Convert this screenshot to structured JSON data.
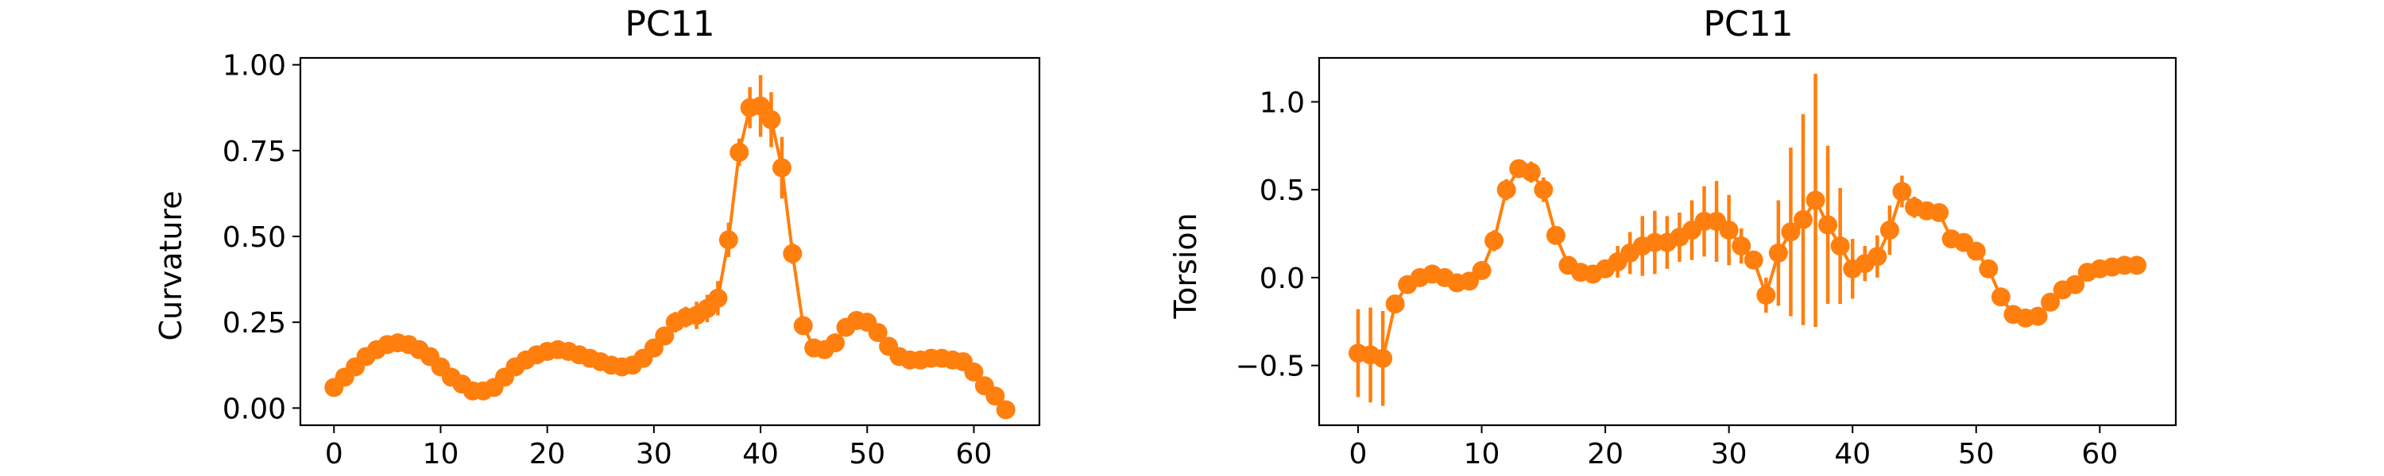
{
  "chart_data": [
    {
      "type": "line",
      "title": "PC11",
      "xlabel": "",
      "ylabel": "Curvature",
      "xlim": [
        -3.15,
        66.15
      ],
      "ylim": [
        -0.05,
        1.02
      ],
      "xticks": [
        0,
        10,
        20,
        30,
        40,
        50,
        60
      ],
      "yticks": [
        0.0,
        0.25,
        0.5,
        0.75,
        1.0
      ],
      "ytick_labels": [
        "0.00",
        "0.25",
        "0.50",
        "0.75",
        "1.00"
      ],
      "color": "#ff7f0e",
      "x": [
        0,
        1,
        2,
        3,
        4,
        5,
        6,
        7,
        8,
        9,
        10,
        11,
        12,
        13,
        14,
        15,
        16,
        17,
        18,
        19,
        20,
        21,
        22,
        23,
        24,
        25,
        26,
        27,
        28,
        29,
        30,
        31,
        32,
        33,
        34,
        35,
        36,
        37,
        38,
        39,
        40,
        41,
        42,
        43,
        44,
        45,
        46,
        47,
        48,
        49,
        50,
        51,
        52,
        53,
        54,
        55,
        56,
        57,
        58,
        59,
        60,
        61,
        62,
        63
      ],
      "y": [
        0.06,
        0.09,
        0.12,
        0.15,
        0.17,
        0.185,
        0.19,
        0.185,
        0.17,
        0.15,
        0.12,
        0.09,
        0.07,
        0.05,
        0.05,
        0.06,
        0.09,
        0.12,
        0.14,
        0.155,
        0.165,
        0.17,
        0.165,
        0.155,
        0.145,
        0.135,
        0.125,
        0.12,
        0.125,
        0.145,
        0.175,
        0.21,
        0.25,
        0.265,
        0.27,
        0.29,
        0.32,
        0.49,
        0.745,
        0.875,
        0.88,
        0.84,
        0.7,
        0.45,
        0.24,
        0.175,
        0.17,
        0.19,
        0.235,
        0.255,
        0.25,
        0.22,
        0.18,
        0.15,
        0.14,
        0.14,
        0.145,
        0.145,
        0.14,
        0.135,
        0.105,
        0.065,
        0.035,
        -0.005
      ],
      "yerr": [
        0.01,
        0.01,
        0.01,
        0.01,
        0.01,
        0.01,
        0.01,
        0.01,
        0.01,
        0.01,
        0.01,
        0.01,
        0.01,
        0.01,
        0.01,
        0.01,
        0.01,
        0.01,
        0.01,
        0.01,
        0.01,
        0.01,
        0.01,
        0.01,
        0.01,
        0.01,
        0.01,
        0.01,
        0.01,
        0.01,
        0.02,
        0.02,
        0.03,
        0.03,
        0.04,
        0.04,
        0.05,
        0.05,
        0.04,
        0.06,
        0.09,
        0.08,
        0.09,
        0.03,
        0.02,
        0.02,
        0.02,
        0.02,
        0.02,
        0.02,
        0.02,
        0.02,
        0.02,
        0.02,
        0.02,
        0.02,
        0.02,
        0.02,
        0.02,
        0.02,
        0.02,
        0.02,
        0.02,
        0.02
      ]
    },
    {
      "type": "line",
      "title": "PC11",
      "xlabel": "",
      "ylabel": "Torsion",
      "xlim": [
        -3.15,
        66.15
      ],
      "ylim": [
        -0.84,
        1.25
      ],
      "xticks": [
        0,
        10,
        20,
        30,
        40,
        50,
        60
      ],
      "yticks": [
        -0.5,
        0.0,
        0.5,
        1.0
      ],
      "ytick_labels": [
        "−0.5",
        "0.0",
        "0.5",
        "1.0"
      ],
      "color": "#ff7f0e",
      "x": [
        0,
        1,
        2,
        3,
        4,
        5,
        6,
        7,
        8,
        9,
        10,
        11,
        12,
        13,
        14,
        15,
        16,
        17,
        18,
        19,
        20,
        21,
        22,
        23,
        24,
        25,
        26,
        27,
        28,
        29,
        30,
        31,
        32,
        33,
        34,
        35,
        36,
        37,
        38,
        39,
        40,
        41,
        42,
        43,
        44,
        45,
        46,
        47,
        48,
        49,
        50,
        51,
        52,
        53,
        54,
        55,
        56,
        57,
        58,
        59,
        60,
        61,
        62,
        63
      ],
      "y": [
        -0.43,
        -0.44,
        -0.46,
        -0.15,
        -0.04,
        0.0,
        0.02,
        0.0,
        -0.03,
        -0.02,
        0.04,
        0.21,
        0.5,
        0.62,
        0.6,
        0.5,
        0.24,
        0.07,
        0.03,
        0.02,
        0.05,
        0.09,
        0.14,
        0.18,
        0.2,
        0.2,
        0.23,
        0.27,
        0.32,
        0.32,
        0.27,
        0.18,
        0.1,
        -0.1,
        0.14,
        0.26,
        0.33,
        0.44,
        0.3,
        0.18,
        0.05,
        0.08,
        0.12,
        0.27,
        0.49,
        0.4,
        0.38,
        0.37,
        0.22,
        0.2,
        0.15,
        0.05,
        -0.11,
        -0.21,
        -0.23,
        -0.22,
        -0.14,
        -0.07,
        -0.04,
        0.03,
        0.05,
        0.06,
        0.07,
        0.07
      ],
      "yerr": [
        0.25,
        0.27,
        0.27,
        0.04,
        0.03,
        0.02,
        0.02,
        0.02,
        0.02,
        0.02,
        0.04,
        0.06,
        0.06,
        0.05,
        0.06,
        0.07,
        0.05,
        0.03,
        0.03,
        0.03,
        0.05,
        0.09,
        0.12,
        0.17,
        0.18,
        0.15,
        0.14,
        0.17,
        0.2,
        0.23,
        0.2,
        0.1,
        0.05,
        0.1,
        0.3,
        0.48,
        0.6,
        0.72,
        0.45,
        0.33,
        0.17,
        0.1,
        0.12,
        0.14,
        0.09,
        0.06,
        0.05,
        0.05,
        0.05,
        0.04,
        0.03,
        0.03,
        0.03,
        0.03,
        0.03,
        0.03,
        0.03,
        0.02,
        0.02,
        0.02,
        0.02,
        0.02,
        0.02,
        0.02
      ]
    }
  ]
}
